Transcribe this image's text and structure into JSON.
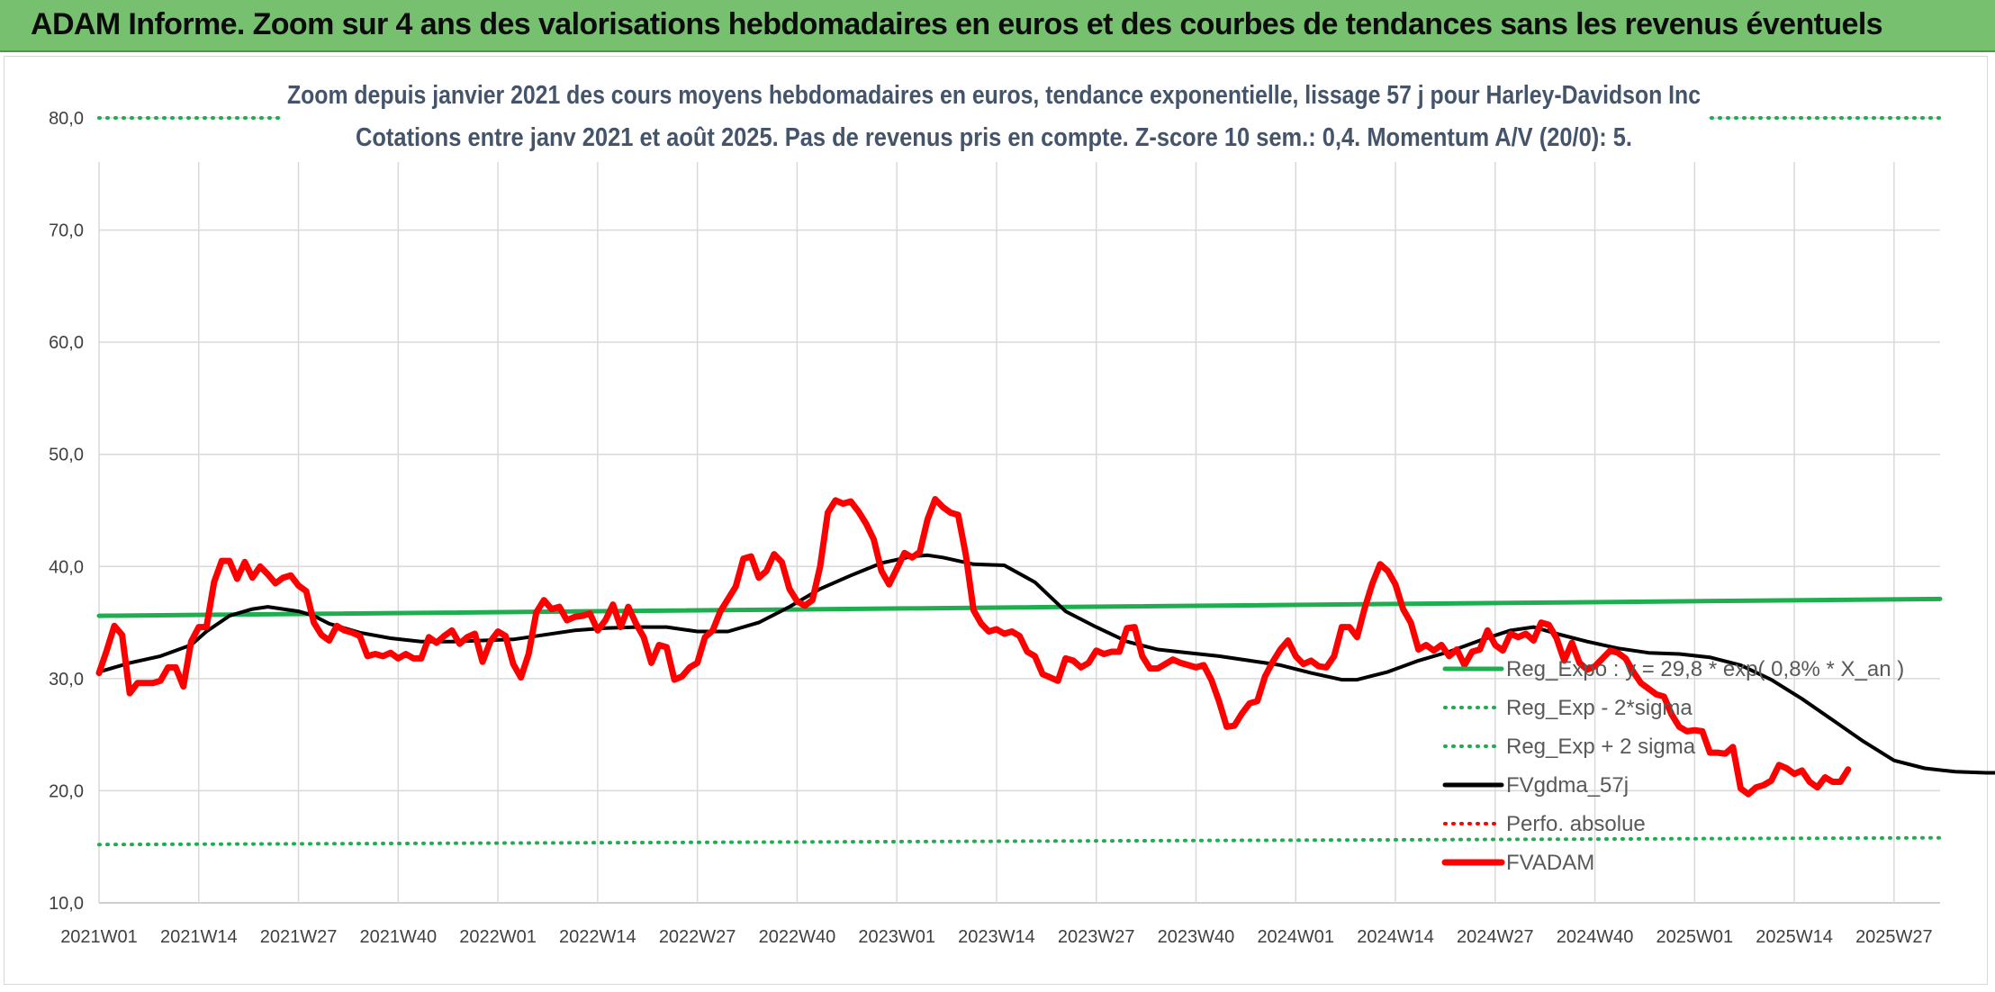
{
  "banner": {
    "title": "ADAM Informe. Zoom sur 4 ans des valorisations hebdomadaires en euros et des courbes de tendances sans les revenus éventuels"
  },
  "chart_data": {
    "type": "line",
    "title": "Zoom depuis janvier 2021 des cours moyens hebdomadaires en euros, tendance exponentielle, lissage 57 j pour Harley-Davidson Inc",
    "subtitle": "Cotations entre janv 2021 et août 2025. Pas de revenus pris en compte. Z-score 10 sem.: 0,4. Momentum A/V (20/0): 5.",
    "xlabel": "",
    "ylabel": "",
    "ylim": [
      10,
      80
    ],
    "yticks": [
      "10,0",
      "20,0",
      "30,0",
      "40,0",
      "50,0",
      "60,0",
      "70,0",
      "80,0"
    ],
    "xticks": [
      "2021W01",
      "2021W14",
      "2021W27",
      "2021W40",
      "2022W01",
      "2022W14",
      "2022W27",
      "2022W40",
      "2023W01",
      "2023W14",
      "2023W27",
      "2023W40",
      "2024W01",
      "2024W14",
      "2024W27",
      "2024W40",
      "2025W01",
      "2025W14",
      "2025W27"
    ],
    "grid": true,
    "legend_position": "bottom-right",
    "x_domain_weeks": [
      0,
      240
    ],
    "series": [
      {
        "name": "Reg_Expo : y = 29,8 * exp( 0,8% *  X_an )",
        "color": "#1fae4f",
        "style": "solid",
        "points": [
          [
            0,
            35.6
          ],
          [
            240,
            37.1
          ]
        ]
      },
      {
        "name": "Reg_Exp - 2*sigma",
        "color": "#1fae4f",
        "style": "dotted",
        "points": [
          [
            0,
            15.2
          ],
          [
            240,
            15.8
          ]
        ]
      },
      {
        "name": "Reg_Exp + 2 sigma",
        "color": "#1fae4f",
        "style": "dotted",
        "points": [
          [
            0,
            80.0
          ],
          [
            240,
            80.0
          ]
        ]
      },
      {
        "name": "FVgdma_57j",
        "color": "#000000",
        "style": "solid",
        "points": [
          [
            0,
            30.6
          ],
          [
            4,
            31.4
          ],
          [
            8,
            32.0
          ],
          [
            12,
            33.0
          ],
          [
            14,
            34.2
          ],
          [
            17,
            35.6
          ],
          [
            20,
            36.2
          ],
          [
            22,
            36.4
          ],
          [
            26,
            36.0
          ],
          [
            28,
            35.6
          ],
          [
            30,
            34.9
          ],
          [
            34,
            34.1
          ],
          [
            38,
            33.6
          ],
          [
            42,
            33.3
          ],
          [
            46,
            33.3
          ],
          [
            50,
            33.4
          ],
          [
            54,
            33.5
          ],
          [
            58,
            33.9
          ],
          [
            62,
            34.3
          ],
          [
            66,
            34.5
          ],
          [
            70,
            34.6
          ],
          [
            74,
            34.6
          ],
          [
            78,
            34.2
          ],
          [
            82,
            34.2
          ],
          [
            86,
            35.0
          ],
          [
            90,
            36.4
          ],
          [
            94,
            38.0
          ],
          [
            98,
            39.2
          ],
          [
            102,
            40.3
          ],
          [
            106,
            40.9
          ],
          [
            108,
            41.0
          ],
          [
            110,
            40.8
          ],
          [
            114,
            40.2
          ],
          [
            118,
            40.1
          ],
          [
            122,
            38.6
          ],
          [
            126,
            36.0
          ],
          [
            130,
            34.6
          ],
          [
            134,
            33.3
          ],
          [
            138,
            32.6
          ],
          [
            142,
            32.3
          ],
          [
            146,
            32.0
          ],
          [
            150,
            31.6
          ],
          [
            154,
            31.2
          ],
          [
            158,
            30.5
          ],
          [
            162,
            29.9
          ],
          [
            164,
            29.9
          ],
          [
            168,
            30.6
          ],
          [
            172,
            31.6
          ],
          [
            176,
            32.4
          ],
          [
            180,
            33.4
          ],
          [
            184,
            34.3
          ],
          [
            187,
            34.6
          ],
          [
            190,
            34.0
          ],
          [
            194,
            33.3
          ],
          [
            198,
            32.7
          ],
          [
            202,
            32.3
          ],
          [
            206,
            32.2
          ],
          [
            210,
            31.9
          ],
          [
            214,
            31.2
          ],
          [
            218,
            29.9
          ],
          [
            222,
            28.2
          ],
          [
            226,
            26.3
          ],
          [
            230,
            24.4
          ],
          [
            234,
            22.7
          ],
          [
            238,
            22.0
          ],
          [
            242,
            21.7
          ],
          [
            246,
            21.6
          ],
          [
            250,
            21.6
          ]
        ]
      },
      {
        "name": "Perfo. absolue",
        "color": "#ff0000",
        "style": "dotted",
        "points": []
      },
      {
        "name": "FVADAM",
        "color": "#ff0000",
        "style": "solid",
        "points": [
          [
            0,
            30.5
          ],
          [
            1,
            32.5
          ],
          [
            2,
            34.7
          ],
          [
            3,
            33.9
          ],
          [
            4,
            28.7
          ],
          [
            5,
            29.6
          ],
          [
            6,
            29.6
          ],
          [
            7,
            29.6
          ],
          [
            8,
            29.8
          ],
          [
            9,
            31.0
          ],
          [
            10,
            31.0
          ],
          [
            11,
            29.3
          ],
          [
            12,
            33.3
          ],
          [
            13,
            34.6
          ],
          [
            14,
            34.6
          ],
          [
            15,
            38.6
          ],
          [
            16,
            40.5
          ],
          [
            17,
            40.5
          ],
          [
            18,
            38.9
          ],
          [
            19,
            40.4
          ],
          [
            20,
            39.0
          ],
          [
            21,
            40.0
          ],
          [
            22,
            39.3
          ],
          [
            23,
            38.5
          ],
          [
            24,
            39.0
          ],
          [
            25,
            39.2
          ],
          [
            26,
            38.3
          ],
          [
            27,
            37.8
          ],
          [
            28,
            35.0
          ],
          [
            29,
            33.9
          ],
          [
            30,
            33.4
          ],
          [
            31,
            34.7
          ],
          [
            32,
            34.3
          ],
          [
            33,
            34.1
          ],
          [
            34,
            33.8
          ],
          [
            35,
            32.0
          ],
          [
            36,
            32.2
          ],
          [
            37,
            32.0
          ],
          [
            38,
            32.3
          ],
          [
            39,
            31.8
          ],
          [
            40,
            32.2
          ],
          [
            41,
            31.8
          ],
          [
            42,
            31.8
          ],
          [
            43,
            33.7
          ],
          [
            44,
            33.2
          ],
          [
            45,
            33.8
          ],
          [
            46,
            34.3
          ],
          [
            47,
            33.1
          ],
          [
            48,
            33.7
          ],
          [
            49,
            34.0
          ],
          [
            50,
            31.5
          ],
          [
            51,
            33.3
          ],
          [
            52,
            34.2
          ],
          [
            53,
            33.8
          ],
          [
            54,
            31.3
          ],
          [
            55,
            30.1
          ],
          [
            56,
            32.2
          ],
          [
            57,
            35.9
          ],
          [
            58,
            37.0
          ],
          [
            59,
            36.2
          ],
          [
            60,
            36.4
          ],
          [
            61,
            35.2
          ],
          [
            62,
            35.5
          ],
          [
            63,
            35.6
          ],
          [
            64,
            35.8
          ],
          [
            65,
            34.3
          ],
          [
            66,
            35.2
          ],
          [
            67,
            36.6
          ],
          [
            68,
            34.6
          ],
          [
            69,
            36.4
          ],
          [
            70,
            34.9
          ],
          [
            71,
            33.7
          ],
          [
            72,
            31.4
          ],
          [
            73,
            33.0
          ],
          [
            74,
            32.8
          ],
          [
            75,
            29.9
          ],
          [
            76,
            30.2
          ],
          [
            77,
            31.0
          ],
          [
            78,
            31.4
          ],
          [
            79,
            33.7
          ],
          [
            80,
            34.3
          ],
          [
            81,
            36.0
          ],
          [
            82,
            37.1
          ],
          [
            83,
            38.2
          ],
          [
            84,
            40.7
          ],
          [
            85,
            40.9
          ],
          [
            86,
            39.0
          ],
          [
            87,
            39.6
          ],
          [
            88,
            41.1
          ],
          [
            89,
            40.4
          ],
          [
            90,
            38.0
          ],
          [
            91,
            36.9
          ],
          [
            92,
            36.5
          ],
          [
            93,
            37.0
          ],
          [
            94,
            40.0
          ],
          [
            95,
            44.8
          ],
          [
            96,
            45.9
          ],
          [
            97,
            45.6
          ],
          [
            98,
            45.8
          ],
          [
            99,
            44.9
          ],
          [
            100,
            43.8
          ],
          [
            101,
            42.4
          ],
          [
            102,
            39.6
          ],
          [
            103,
            38.4
          ],
          [
            104,
            39.8
          ],
          [
            105,
            41.2
          ],
          [
            106,
            40.8
          ],
          [
            107,
            41.3
          ],
          [
            108,
            44.2
          ],
          [
            109,
            46.0
          ],
          [
            110,
            45.3
          ],
          [
            111,
            44.8
          ],
          [
            112,
            44.6
          ],
          [
            113,
            41.0
          ],
          [
            114,
            36.1
          ],
          [
            115,
            34.9
          ],
          [
            116,
            34.2
          ],
          [
            117,
            34.4
          ],
          [
            118,
            34.0
          ],
          [
            119,
            34.2
          ],
          [
            120,
            33.8
          ],
          [
            121,
            32.4
          ],
          [
            122,
            32.0
          ],
          [
            123,
            30.4
          ],
          [
            124,
            30.1
          ],
          [
            125,
            29.8
          ],
          [
            126,
            31.8
          ],
          [
            127,
            31.6
          ],
          [
            128,
            31.0
          ],
          [
            129,
            31.4
          ],
          [
            130,
            32.5
          ],
          [
            131,
            32.2
          ],
          [
            132,
            32.4
          ],
          [
            133,
            32.4
          ],
          [
            134,
            34.5
          ],
          [
            135,
            34.6
          ],
          [
            136,
            32.0
          ],
          [
            137,
            30.9
          ],
          [
            138,
            30.9
          ],
          [
            139,
            31.3
          ],
          [
            140,
            31.7
          ],
          [
            141,
            31.4
          ],
          [
            142,
            31.2
          ],
          [
            143,
            31.0
          ],
          [
            144,
            31.2
          ],
          [
            145,
            29.9
          ],
          [
            146,
            28.0
          ],
          [
            147,
            25.7
          ],
          [
            148,
            25.8
          ],
          [
            149,
            26.9
          ],
          [
            150,
            27.8
          ],
          [
            151,
            28.0
          ],
          [
            152,
            30.2
          ],
          [
            153,
            31.5
          ],
          [
            154,
            32.6
          ],
          [
            155,
            33.4
          ],
          [
            156,
            32.0
          ],
          [
            157,
            31.3
          ],
          [
            158,
            31.6
          ],
          [
            159,
            31.1
          ],
          [
            160,
            31.0
          ],
          [
            161,
            32.0
          ],
          [
            162,
            34.6
          ],
          [
            163,
            34.6
          ],
          [
            164,
            33.7
          ],
          [
            165,
            36.3
          ],
          [
            166,
            38.5
          ],
          [
            167,
            40.2
          ],
          [
            168,
            39.6
          ],
          [
            169,
            38.4
          ],
          [
            170,
            36.2
          ],
          [
            171,
            35.0
          ],
          [
            172,
            32.6
          ],
          [
            173,
            33.0
          ],
          [
            174,
            32.5
          ],
          [
            175,
            33.0
          ],
          [
            176,
            32.0
          ],
          [
            177,
            32.6
          ],
          [
            178,
            31.2
          ],
          [
            179,
            32.4
          ],
          [
            180,
            32.6
          ],
          [
            181,
            34.3
          ],
          [
            182,
            33.0
          ],
          [
            183,
            32.5
          ],
          [
            184,
            34.0
          ],
          [
            185,
            33.7
          ],
          [
            186,
            34.0
          ],
          [
            187,
            33.4
          ],
          [
            188,
            35.0
          ],
          [
            189,
            34.8
          ],
          [
            190,
            33.6
          ],
          [
            191,
            31.6
          ],
          [
            192,
            33.2
          ],
          [
            193,
            31.4
          ],
          [
            194,
            30.8
          ],
          [
            195,
            31.1
          ],
          [
            196,
            31.8
          ],
          [
            197,
            32.5
          ],
          [
            198,
            32.3
          ],
          [
            199,
            31.8
          ],
          [
            200,
            30.6
          ],
          [
            201,
            29.6
          ],
          [
            202,
            29.1
          ],
          [
            203,
            28.6
          ],
          [
            204,
            28.4
          ],
          [
            205,
            26.8
          ],
          [
            206,
            25.7
          ],
          [
            207,
            25.3
          ],
          [
            208,
            25.4
          ],
          [
            209,
            25.3
          ],
          [
            210,
            23.4
          ],
          [
            211,
            23.4
          ],
          [
            212,
            23.3
          ],
          [
            213,
            23.9
          ],
          [
            214,
            20.2
          ],
          [
            215,
            19.7
          ],
          [
            216,
            20.3
          ],
          [
            217,
            20.5
          ],
          [
            218,
            20.9
          ],
          [
            219,
            22.3
          ],
          [
            220,
            22.0
          ],
          [
            221,
            21.5
          ],
          [
            222,
            21.8
          ],
          [
            223,
            20.8
          ],
          [
            224,
            20.3
          ],
          [
            225,
            21.2
          ],
          [
            226,
            20.8
          ],
          [
            227,
            20.8
          ],
          [
            228,
            21.9
          ]
        ]
      }
    ]
  }
}
